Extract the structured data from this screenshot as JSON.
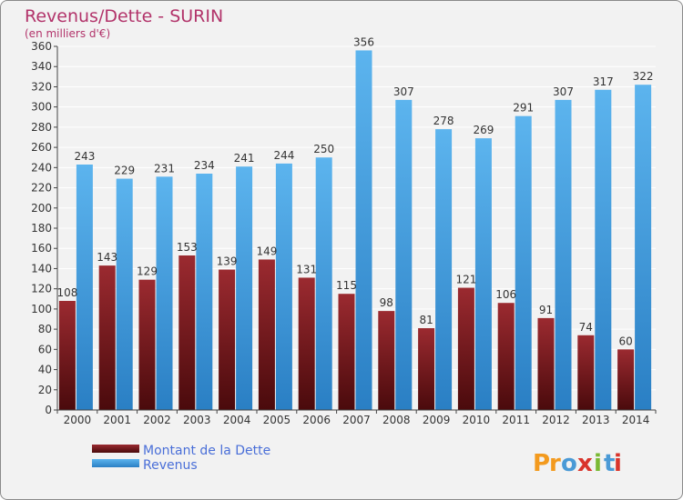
{
  "chart_data": {
    "type": "bar",
    "title": "Revenus/Dette - SURIN",
    "subtitle": "(en milliers d'€)",
    "categories": [
      "2000",
      "2001",
      "2002",
      "2003",
      "2004",
      "2005",
      "2006",
      "2007",
      "2008",
      "2009",
      "2010",
      "2011",
      "2012",
      "2013",
      "2014"
    ],
    "series": [
      {
        "name": "Montant de la Dette",
        "color": "#7a1a1e",
        "values": [
          108,
          143,
          129,
          153,
          139,
          149,
          131,
          115,
          98,
          81,
          121,
          106,
          91,
          74,
          60
        ]
      },
      {
        "name": "Revenus",
        "color": "#3d9be0",
        "values": [
          243,
          229,
          231,
          234,
          241,
          244,
          250,
          356,
          307,
          278,
          269,
          291,
          307,
          317,
          322
        ]
      }
    ],
    "ylim": [
      0,
      360
    ],
    "yticks": [
      0,
      20,
      40,
      60,
      80,
      100,
      120,
      140,
      160,
      180,
      200,
      220,
      240,
      260,
      280,
      300,
      320,
      340,
      360
    ],
    "grid": true,
    "legend_position": "bottom-left",
    "brand": "Proxiti"
  }
}
